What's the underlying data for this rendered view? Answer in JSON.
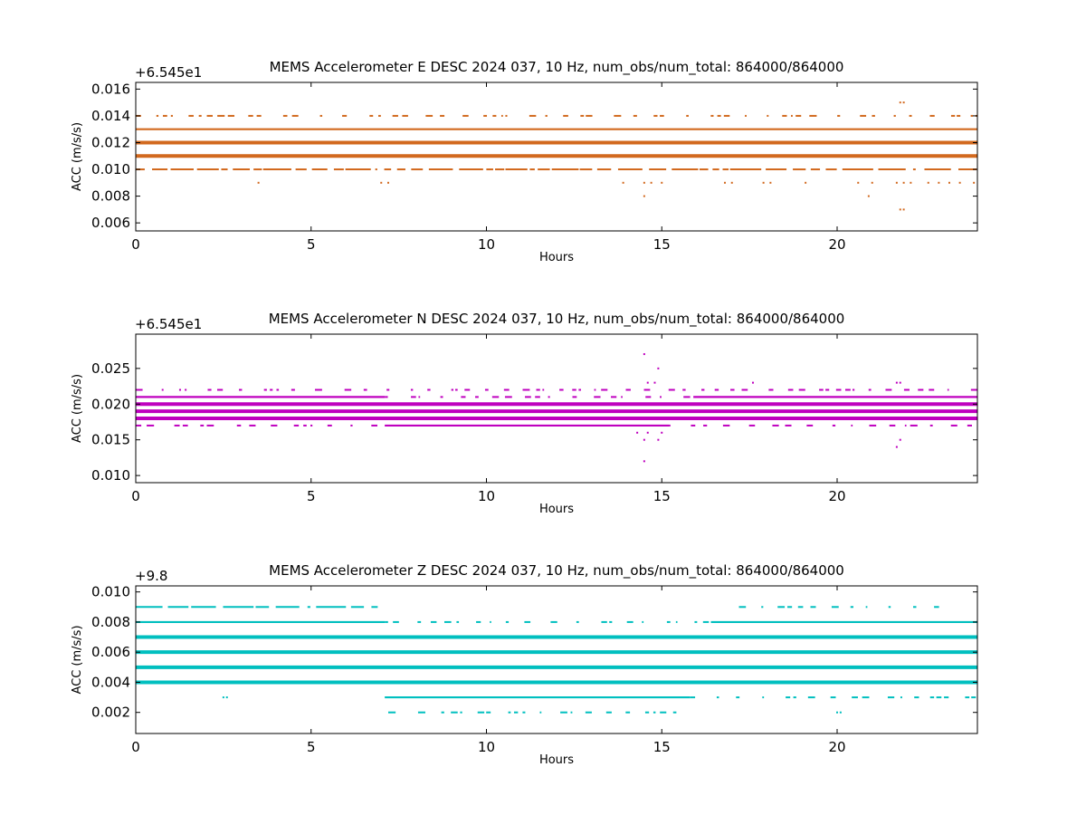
{
  "figure": {
    "background": "#ffffff"
  },
  "chart_data": [
    {
      "type": "scatter",
      "title": "MEMS Accelerometer E DESC 2024 037, 10 Hz, num_obs/num_total: 864000/864000",
      "xlabel": "Hours",
      "ylabel": "ACC (m/s/s)",
      "offset_text": "+6.545e1",
      "color": "#d2691e",
      "xlim": [
        0,
        24
      ],
      "ylim": [
        0.0054,
        0.0165
      ],
      "xticks": [
        0,
        5,
        10,
        15,
        20
      ],
      "yticks": [
        0.006,
        0.008,
        0.01,
        0.012,
        0.014,
        0.016
      ],
      "ytick_labels": [
        "0.006",
        "0.008",
        "0.010",
        "0.012",
        "0.014",
        "0.016"
      ],
      "grid": false,
      "levels": [
        {
          "y": 0.011,
          "x_ranges": [
            [
              0,
              24
            ]
          ],
          "density": "dense"
        },
        {
          "y": 0.012,
          "x_ranges": [
            [
              0,
              24
            ]
          ],
          "density": "dense"
        },
        {
          "y": 0.013,
          "x_ranges": [
            [
              0,
              24
            ]
          ],
          "density": "medium"
        },
        {
          "y": 0.01,
          "x_ranges": [
            [
              0,
              24
            ]
          ],
          "density": "sparse-mixed"
        },
        {
          "y": 0.014,
          "x_ranges": [
            [
              0,
              24
            ]
          ],
          "density": "sparse"
        }
      ],
      "points": [
        {
          "x": 3.5,
          "y": 0.009
        },
        {
          "x": 7.0,
          "y": 0.009
        },
        {
          "x": 7.2,
          "y": 0.009
        },
        {
          "x": 13.9,
          "y": 0.009
        },
        {
          "x": 14.5,
          "y": 0.009
        },
        {
          "x": 14.5,
          "y": 0.008
        },
        {
          "x": 14.7,
          "y": 0.009
        },
        {
          "x": 15.0,
          "y": 0.009
        },
        {
          "x": 16.8,
          "y": 0.009
        },
        {
          "x": 17.0,
          "y": 0.009
        },
        {
          "x": 17.9,
          "y": 0.009
        },
        {
          "x": 18.1,
          "y": 0.009
        },
        {
          "x": 19.1,
          "y": 0.009
        },
        {
          "x": 20.6,
          "y": 0.009
        },
        {
          "x": 20.9,
          "y": 0.008
        },
        {
          "x": 21.0,
          "y": 0.009
        },
        {
          "x": 21.7,
          "y": 0.009
        },
        {
          "x": 21.8,
          "y": 0.007
        },
        {
          "x": 21.9,
          "y": 0.007
        },
        {
          "x": 21.9,
          "y": 0.009
        },
        {
          "x": 22.1,
          "y": 0.009
        },
        {
          "x": 22.6,
          "y": 0.009
        },
        {
          "x": 22.9,
          "y": 0.009
        },
        {
          "x": 23.2,
          "y": 0.009
        },
        {
          "x": 23.5,
          "y": 0.009
        },
        {
          "x": 23.9,
          "y": 0.009
        },
        {
          "x": 21.8,
          "y": 0.015
        },
        {
          "x": 21.9,
          "y": 0.015
        }
      ]
    },
    {
      "type": "scatter",
      "title": "MEMS Accelerometer N DESC 2024 037, 10 Hz, num_obs/num_total: 864000/864000",
      "xlabel": "Hours",
      "ylabel": "ACC (m/s/s)",
      "offset_text": "+6.545e1",
      "color": "#bf00bf",
      "xlim": [
        0,
        24
      ],
      "ylim": [
        0.009,
        0.0298
      ],
      "xticks": [
        0,
        5,
        10,
        15,
        20
      ],
      "yticks": [
        0.01,
        0.015,
        0.02,
        0.025
      ],
      "ytick_labels": [
        "0.010",
        "0.015",
        "0.020",
        "0.025"
      ],
      "grid": false,
      "levels": [
        {
          "y": 0.018,
          "x_ranges": [
            [
              0,
              24
            ]
          ],
          "density": "dense"
        },
        {
          "y": 0.019,
          "x_ranges": [
            [
              0,
              24
            ]
          ],
          "density": "dense"
        },
        {
          "y": 0.02,
          "x_ranges": [
            [
              0,
              24
            ]
          ],
          "density": "dense"
        },
        {
          "y": 0.021,
          "x_ranges": [
            [
              0,
              7.1
            ],
            [
              15.9,
              24
            ]
          ],
          "density": "medium"
        },
        {
          "y": 0.021,
          "x_ranges": [
            [
              7.1,
              15.9
            ]
          ],
          "density": "sparse"
        },
        {
          "y": 0.017,
          "x_ranges": [
            [
              7.1,
              15.2
            ]
          ],
          "density": "medium"
        },
        {
          "y": 0.017,
          "x_ranges": [
            [
              0,
              7.1
            ],
            [
              15.2,
              24
            ]
          ],
          "density": "sparse"
        },
        {
          "y": 0.022,
          "x_ranges": [
            [
              0,
              24
            ]
          ],
          "density": "sparse"
        }
      ],
      "points": [
        {
          "x": 14.5,
          "y": 0.027
        },
        {
          "x": 14.9,
          "y": 0.025
        },
        {
          "x": 14.6,
          "y": 0.023
        },
        {
          "x": 14.8,
          "y": 0.023
        },
        {
          "x": 14.3,
          "y": 0.016
        },
        {
          "x": 14.5,
          "y": 0.015
        },
        {
          "x": 14.5,
          "y": 0.012
        },
        {
          "x": 14.9,
          "y": 0.015
        },
        {
          "x": 15.0,
          "y": 0.016
        },
        {
          "x": 14.6,
          "y": 0.016
        },
        {
          "x": 17.6,
          "y": 0.023
        },
        {
          "x": 21.7,
          "y": 0.014
        },
        {
          "x": 21.8,
          "y": 0.015
        },
        {
          "x": 21.7,
          "y": 0.023
        },
        {
          "x": 21.8,
          "y": 0.023
        }
      ]
    },
    {
      "type": "scatter",
      "title": "MEMS Accelerometer Z DESC 2024 037, 10 Hz, num_obs/num_total: 864000/864000",
      "xlabel": "Hours",
      "ylabel": "ACC (m/s/s)",
      "offset_text": "+9.8",
      "color": "#00bfbf",
      "xlim": [
        0,
        24
      ],
      "ylim": [
        0.0006,
        0.0104
      ],
      "xticks": [
        0,
        5,
        10,
        15,
        20
      ],
      "yticks": [
        0.002,
        0.004,
        0.006,
        0.008,
        0.01
      ],
      "ytick_labels": [
        "0.002",
        "0.004",
        "0.006",
        "0.008",
        "0.010"
      ],
      "grid": false,
      "levels": [
        {
          "y": 0.005,
          "x_ranges": [
            [
              0,
              24
            ]
          ],
          "density": "dense"
        },
        {
          "y": 0.006,
          "x_ranges": [
            [
              0,
              24
            ]
          ],
          "density": "dense"
        },
        {
          "y": 0.007,
          "x_ranges": [
            [
              0,
              24
            ]
          ],
          "density": "dense"
        },
        {
          "y": 0.004,
          "x_ranges": [
            [
              0,
              24
            ]
          ],
          "density": "dense"
        },
        {
          "y": 0.008,
          "x_ranges": [
            [
              0,
              7.1
            ],
            [
              16.4,
              24
            ]
          ],
          "density": "medium"
        },
        {
          "y": 0.008,
          "x_ranges": [
            [
              7.1,
              16.4
            ]
          ],
          "density": "sparse"
        },
        {
          "y": 0.003,
          "x_ranges": [
            [
              7.1,
              15.8
            ]
          ],
          "density": "medium"
        },
        {
          "y": 0.003,
          "x_ranges": [
            [
              15.8,
              24
            ]
          ],
          "density": "sparse"
        },
        {
          "y": 0.009,
          "x_ranges": [
            [
              0,
              6.9
            ]
          ],
          "density": "sparse-mixed"
        },
        {
          "y": 0.009,
          "x_ranges": [
            [
              17.2,
              23.4
            ]
          ],
          "density": "sparse"
        },
        {
          "y": 0.002,
          "x_ranges": [
            [
              7.2,
              15.6
            ]
          ],
          "density": "sparse"
        }
      ],
      "points": [
        {
          "x": 2.5,
          "y": 0.003
        },
        {
          "x": 2.6,
          "y": 0.003
        },
        {
          "x": 20.0,
          "y": 0.002
        },
        {
          "x": 20.1,
          "y": 0.002
        }
      ]
    }
  ]
}
